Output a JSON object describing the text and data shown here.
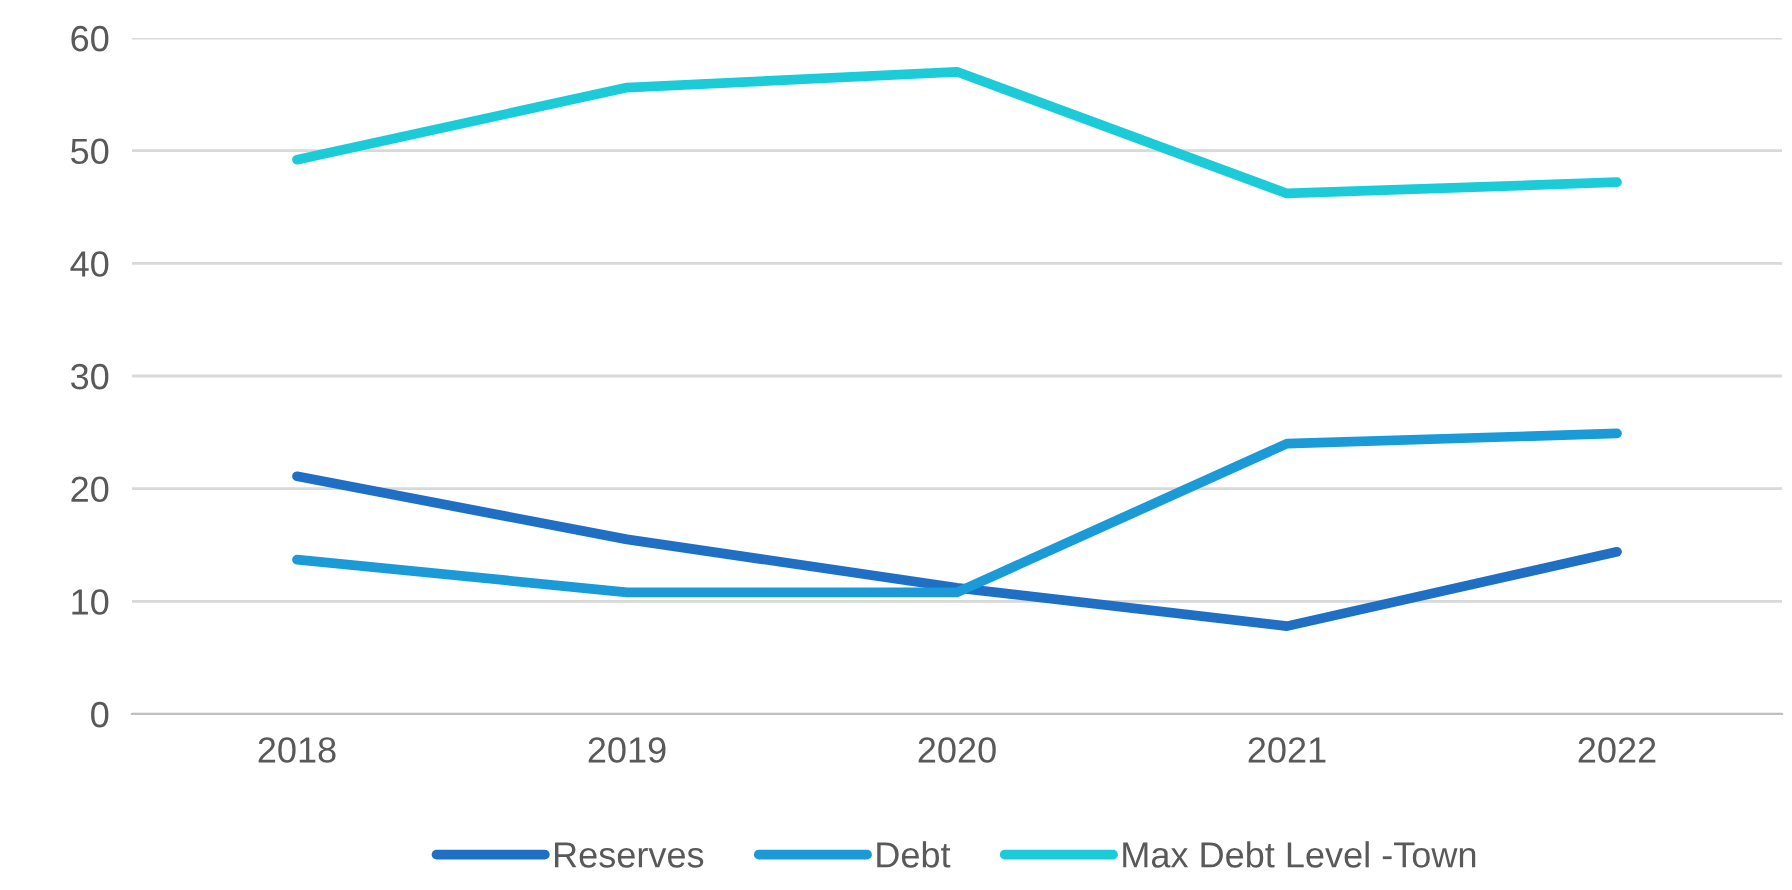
{
  "chart_data": {
    "type": "line",
    "categories": [
      "2018",
      "2019",
      "2020",
      "2021",
      "2022"
    ],
    "series": [
      {
        "name": "Reserves",
        "color": "#1f6fc5",
        "values": [
          21.1,
          15.5,
          11.2,
          7.8,
          14.4
        ]
      },
      {
        "name": "Debt",
        "color": "#1a9ad6",
        "values": [
          13.7,
          10.8,
          10.8,
          24.0,
          24.9
        ]
      },
      {
        "name": "Max Debt Level -Town",
        "color": "#1ccbd8",
        "values": [
          49.2,
          55.6,
          57.0,
          46.2,
          47.2
        ]
      }
    ],
    "ylim": [
      0,
      60
    ],
    "yticks": [
      0,
      10,
      20,
      30,
      40,
      50,
      60
    ],
    "grid": "y",
    "legend": "bottom",
    "marker": "none",
    "line_style": "solid"
  }
}
